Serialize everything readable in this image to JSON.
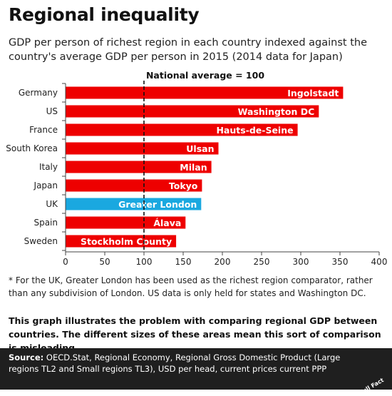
{
  "title": "Regional inequality",
  "subtitle": "GDP per person of richest region in each country indexed against the country's average GDP per person in 2015 (2014 data for Japan)",
  "footnote": "* For the UK, Greater London has been used as the richest region comparator, rather than any subdivision of London. US data is only held for states and Washington DC.",
  "note": "This graph illustrates the problem with comparing regional GDP between countries. The different sizes of these areas mean this sort of comparison is misleading.",
  "source": {
    "label": "Source:",
    "text": " OECD.Stat, Regional Economy, Regional Gross Domestic Product (Large regions TL2 and Small regions TL3), USD per head, current prices current PPP"
  },
  "brand": "Full Fact",
  "colors": {
    "bar": "#ee0000",
    "highlight": "#1aa8e0",
    "reference": "#111111"
  },
  "chart_data": {
    "type": "bar",
    "orientation": "horizontal",
    "categories": [
      "Germany",
      "US",
      "France",
      "South Korea",
      "Italy",
      "Japan",
      "UK",
      "Spain",
      "Sweden"
    ],
    "values": [
      354,
      323,
      296,
      195,
      186,
      174,
      173,
      153,
      141
    ],
    "bar_labels": [
      "Ingolstadt",
      "Washington DC",
      "Hauts-de-Seine",
      "Ulsan",
      "Milan",
      "Tokyo",
      "Greater London",
      "Álava",
      "Stockholm County"
    ],
    "highlight": "UK",
    "reference_line": {
      "value": 100,
      "label": "National average = 100"
    },
    "xlim": [
      0,
      400
    ],
    "xticks": [
      0,
      50,
      100,
      150,
      200,
      250,
      300,
      350,
      400
    ],
    "grid": false
  }
}
